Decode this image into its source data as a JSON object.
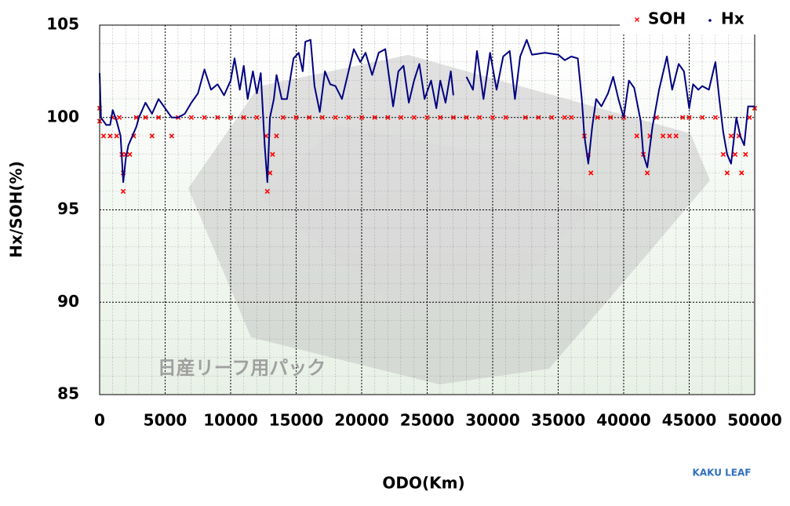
{
  "chart_data": {
    "type": "scatter",
    "xlabel": "ODO(Km)",
    "ylabel": "Hx/SOH(%)",
    "xlim": [
      0,
      50000
    ],
    "ylim": [
      85,
      105
    ],
    "xticks": [
      0,
      5000,
      10000,
      15000,
      20000,
      25000,
      30000,
      35000,
      40000,
      45000,
      50000
    ],
    "yticks": [
      85,
      90,
      95,
      100,
      105
    ],
    "grid": true,
    "legend": "upper right",
    "annotations": [
      "日産リーフ用パック",
      "KAKU LEAF"
    ],
    "series": [
      {
        "name": "SOH",
        "color": "#ff0000",
        "marker": "x",
        "x": [
          0,
          0,
          300,
          800,
          1000,
          1300,
          1500,
          1700,
          1800,
          1800,
          2000,
          2300,
          2600,
          2800,
          3500,
          4000,
          4500,
          5500,
          6000,
          7000,
          8000,
          9000,
          10000,
          11000,
          12000,
          12700,
          12800,
          13000,
          13200,
          13500,
          14000,
          15000,
          16000,
          17000,
          18000,
          19000,
          20000,
          21000,
          22000,
          23000,
          24000,
          25000,
          26000,
          27000,
          28000,
          29000,
          30000,
          31000,
          32500,
          33500,
          34500,
          35500,
          36000,
          37000,
          37300,
          37500,
          38000,
          39000,
          40000,
          41000,
          41500,
          41800,
          42000,
          42500,
          43000,
          43500,
          44000,
          44500,
          45000,
          46000,
          47000,
          47600,
          47900,
          48200,
          48500,
          48800,
          49000,
          49300,
          49600,
          50000
        ],
        "values": [
          100.5,
          99.8,
          99,
          99,
          100,
          99,
          100,
          98,
          97,
          96,
          98,
          98,
          99,
          100,
          100,
          99,
          100,
          99,
          100,
          100,
          100,
          100,
          100,
          100,
          100,
          99,
          96,
          97,
          98,
          99,
          100,
          100,
          100,
          100,
          100,
          100,
          100,
          100,
          100,
          100,
          100,
          100,
          100,
          100,
          100,
          100,
          100,
          100,
          100,
          100,
          100,
          100,
          100,
          99,
          98,
          97,
          100,
          100,
          100,
          99,
          98,
          97,
          99,
          100,
          99,
          99,
          99,
          100,
          100,
          100,
          100,
          98,
          97,
          99,
          98,
          99,
          97,
          98,
          100,
          100.5
        ]
      },
      {
        "name": "Hx",
        "color": "#000080",
        "marker": "line",
        "x": [
          0,
          100,
          500,
          800,
          1000,
          1300,
          1600,
          1800,
          2000,
          2200,
          2500,
          2800,
          3000,
          3500,
          4000,
          4500,
          5000,
          5500,
          6000,
          6500,
          7000,
          7500,
          8000,
          8500,
          9000,
          9500,
          10000,
          10300,
          10700,
          11000,
          11300,
          11700,
          12000,
          12300,
          12600,
          12800,
          13000,
          13300,
          13500,
          13900,
          14300,
          14800,
          15200,
          15500,
          15700,
          16100,
          16400,
          16800,
          17200,
          17600,
          18000,
          18500,
          19000,
          19400,
          19900,
          20300,
          20800,
          21300,
          21800,
          22400,
          22800,
          23200,
          23600,
          24000,
          24400,
          24800,
          25300,
          25700,
          26000,
          26400,
          26800,
          27000,
          27500,
          28000,
          28500,
          28800,
          29300,
          29800,
          30300,
          30800,
          31300,
          31700,
          32100,
          32600,
          33000,
          34000,
          35000,
          35500,
          36000,
          36500,
          36800,
          37000,
          37300,
          37600,
          37900,
          38300,
          38800,
          39200,
          39600,
          40000,
          40400,
          40800,
          41300,
          41500,
          41800,
          42200,
          42700,
          43300,
          43700,
          44200,
          44600,
          45000,
          45300,
          45700,
          46000,
          46500,
          47000,
          47300,
          47600,
          47900,
          48200,
          48600,
          48900,
          49200,
          49500,
          50000
        ],
        "values": [
          102.4,
          100,
          99.6,
          99.6,
          100.4,
          99.8,
          99,
          96.5,
          97.8,
          98.5,
          99,
          99.5,
          100,
          100.8,
          100.2,
          101,
          100.5,
          100,
          100,
          100.2,
          100.8,
          101.3,
          102.6,
          101.5,
          101.8,
          101.2,
          102,
          103.2,
          101.5,
          102.8,
          101,
          102.5,
          101.3,
          102.4,
          98.5,
          96.5,
          100,
          101,
          102.3,
          101,
          101,
          103.2,
          103.5,
          102.5,
          104.1,
          104.2,
          101.7,
          100.3,
          102.5,
          101.8,
          101.7,
          101,
          102.5,
          103.7,
          103,
          103.5,
          102.3,
          103.5,
          103.7,
          100.6,
          102.5,
          102.8,
          100.8,
          102,
          102.9,
          101,
          102,
          100.5,
          102,
          100.8,
          102.5,
          101.2,
          null,
          102.2,
          101.5,
          103.6,
          101,
          103.5,
          101.5,
          103.3,
          103.6,
          101,
          103.3,
          104.2,
          103.4,
          103.5,
          103.4,
          103.1,
          103.3,
          103.2,
          101,
          99,
          97.5,
          99.5,
          101,
          100.6,
          101.3,
          102.2,
          101,
          100,
          102,
          101.6,
          99.8,
          98,
          97.3,
          99.5,
          101.5,
          103.3,
          101.5,
          102.9,
          102.5,
          100.5,
          101.8,
          101.5,
          101.7,
          101.5,
          103,
          101,
          99.2,
          98,
          97.5,
          100,
          99,
          98.5,
          100.6,
          100.6
        ]
      }
    ]
  }
}
